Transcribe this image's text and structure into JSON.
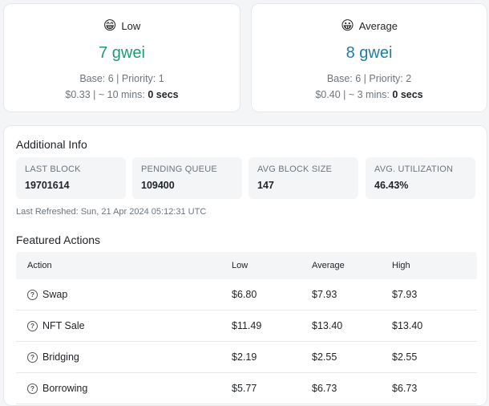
{
  "gas": {
    "low": {
      "emoji": "😁",
      "label": "Low",
      "price": "7 gwei",
      "base_priority": "Base: 6 | Priority: 1",
      "cost": "$0.33",
      "time_prefix": "~ 10 mins:",
      "time_value": "0 secs"
    },
    "average": {
      "emoji": "😀",
      "label": "Average",
      "price": "8 gwei",
      "base_priority": "Base: 6 | Priority: 2",
      "cost": "$0.40",
      "time_prefix": "~ 3 mins:",
      "time_value": "0 secs"
    }
  },
  "additional_info": {
    "title": "Additional Info",
    "boxes": [
      {
        "label": "LAST BLOCK",
        "value": "19701614"
      },
      {
        "label": "PENDING QUEUE",
        "value": "109400"
      },
      {
        "label": "AVG BLOCK SIZE",
        "value": "147"
      },
      {
        "label": "AVG. UTILIZATION",
        "value": "46.43%"
      }
    ],
    "refreshed": "Last Refreshed: Sun, 21 Apr 2024 05:12:31 UTC"
  },
  "featured": {
    "title": "Featured Actions",
    "headers": [
      "Action",
      "Low",
      "Average",
      "High"
    ],
    "rows": [
      {
        "action": "Swap",
        "low": "$6.80",
        "average": "$7.93",
        "high": "$7.93"
      },
      {
        "action": "NFT Sale",
        "low": "$11.49",
        "average": "$13.40",
        "high": "$13.40"
      },
      {
        "action": "Bridging",
        "low": "$2.19",
        "average": "$2.55",
        "high": "$2.55"
      },
      {
        "action": "Borrowing",
        "low": "$5.77",
        "average": "$6.73",
        "high": "$6.73"
      }
    ]
  }
}
